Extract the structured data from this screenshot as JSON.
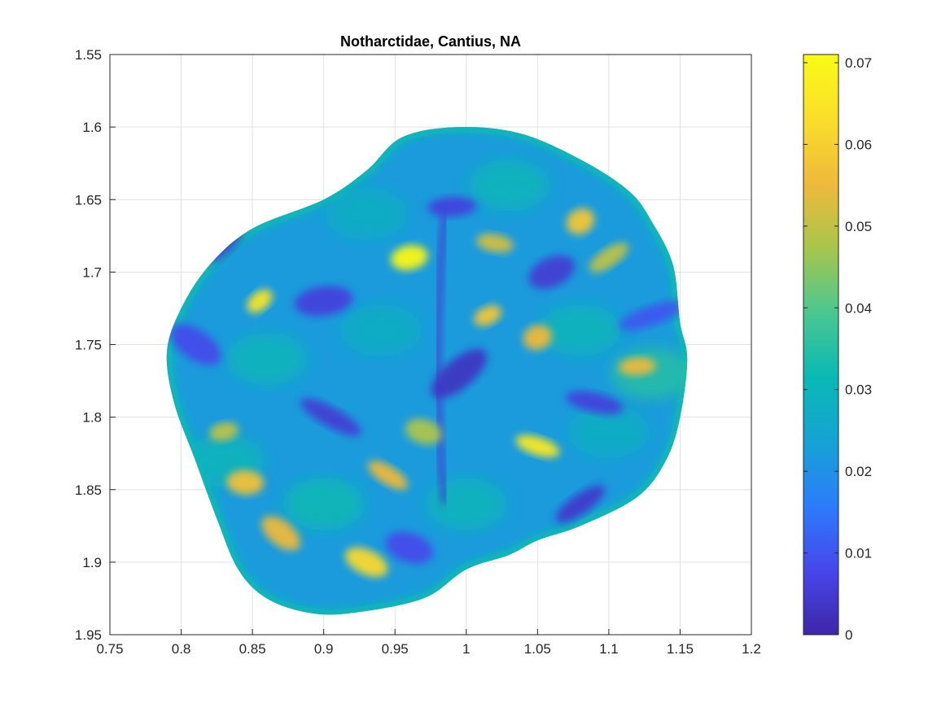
{
  "chart_data": {
    "type": "heatmap",
    "title": "Notharctidae, Cantius, NA",
    "xlabel": "",
    "ylabel": "",
    "xlim": [
      0.75,
      1.2
    ],
    "ylim": [
      1.95,
      1.55
    ],
    "y_reversed": true,
    "grid": true,
    "x_ticks": [
      "0.75",
      "0.8",
      "0.85",
      "0.9",
      "0.95",
      "1",
      "1.05",
      "1.1",
      "1.15",
      "1.2"
    ],
    "y_ticks": [
      "1.55",
      "1.6",
      "1.65",
      "1.7",
      "1.75",
      "1.8",
      "1.85",
      "1.9",
      "1.95"
    ],
    "colorbar": {
      "range": [
        0,
        0.071
      ],
      "ticks": [
        "0",
        "0.01",
        "0.02",
        "0.03",
        "0.04",
        "0.05",
        "0.06",
        "0.07"
      ],
      "colormap": "parula",
      "stops": [
        "#3e26a8",
        "#4746eb",
        "#2c7cfc",
        "#16a3d4",
        "#09b9b4",
        "#4bc790",
        "#a7c64c",
        "#f0b93b",
        "#fade2b",
        "#f9fb15"
      ]
    },
    "surface": {
      "description_values": "surface colored by local scalar value (0 to ~0.07)",
      "outline": [
        [
          0.79,
          1.755
        ],
        [
          0.8,
          1.725
        ],
        [
          0.82,
          1.695
        ],
        [
          0.85,
          1.67
        ],
        [
          0.9,
          1.65
        ],
        [
          0.93,
          1.63
        ],
        [
          0.955,
          1.607
        ],
        [
          0.995,
          1.6
        ],
        [
          1.04,
          1.605
        ],
        [
          1.085,
          1.625
        ],
        [
          1.115,
          1.645
        ],
        [
          1.13,
          1.665
        ],
        [
          1.145,
          1.695
        ],
        [
          1.15,
          1.735
        ],
        [
          1.155,
          1.76
        ],
        [
          1.15,
          1.8
        ],
        [
          1.14,
          1.83
        ],
        [
          1.12,
          1.855
        ],
        [
          1.08,
          1.875
        ],
        [
          1.05,
          1.885
        ],
        [
          1.03,
          1.895
        ],
        [
          1.0,
          1.905
        ],
        [
          0.97,
          1.925
        ],
        [
          0.92,
          1.935
        ],
        [
          0.89,
          1.935
        ],
        [
          0.86,
          1.925
        ],
        [
          0.84,
          1.905
        ],
        [
          0.825,
          1.87
        ],
        [
          0.81,
          1.83
        ],
        [
          0.795,
          1.79
        ]
      ],
      "hotspots": [
        {
          "x": 0.855,
          "y": 1.72,
          "value": 0.065
        },
        {
          "x": 0.96,
          "y": 1.69,
          "value": 0.07
        },
        {
          "x": 1.05,
          "y": 1.82,
          "value": 0.066
        },
        {
          "x": 1.08,
          "y": 1.665,
          "value": 0.058
        },
        {
          "x": 1.12,
          "y": 1.765,
          "value": 0.055
        },
        {
          "x": 0.93,
          "y": 1.9,
          "value": 0.062
        },
        {
          "x": 1.015,
          "y": 1.73,
          "value": 0.058
        },
        {
          "x": 0.845,
          "y": 1.845,
          "value": 0.057
        },
        {
          "x": 0.945,
          "y": 1.84,
          "value": 0.055
        },
        {
          "x": 1.05,
          "y": 1.745,
          "value": 0.055
        },
        {
          "x": 1.02,
          "y": 1.68,
          "value": 0.052
        },
        {
          "x": 0.87,
          "y": 1.88,
          "value": 0.055
        },
        {
          "x": 0.83,
          "y": 1.81,
          "value": 0.05
        },
        {
          "x": 0.97,
          "y": 1.81,
          "value": 0.048
        },
        {
          "x": 1.1,
          "y": 1.69,
          "value": 0.05
        }
      ],
      "lowspots": [
        {
          "x": 0.83,
          "y": 1.68,
          "value": 0.005
        },
        {
          "x": 0.9,
          "y": 1.72,
          "value": 0.006
        },
        {
          "x": 0.905,
          "y": 1.8,
          "value": 0.005
        },
        {
          "x": 1.06,
          "y": 1.7,
          "value": 0.005
        },
        {
          "x": 1.09,
          "y": 1.79,
          "value": 0.006
        },
        {
          "x": 0.995,
          "y": 1.77,
          "value": 0.003
        },
        {
          "x": 0.99,
          "y": 1.655,
          "value": 0.006
        },
        {
          "x": 0.81,
          "y": 1.75,
          "value": 0.008
        },
        {
          "x": 1.13,
          "y": 1.73,
          "value": 0.01
        },
        {
          "x": 0.96,
          "y": 1.89,
          "value": 0.008
        },
        {
          "x": 1.08,
          "y": 1.86,
          "value": 0.004
        }
      ]
    }
  }
}
